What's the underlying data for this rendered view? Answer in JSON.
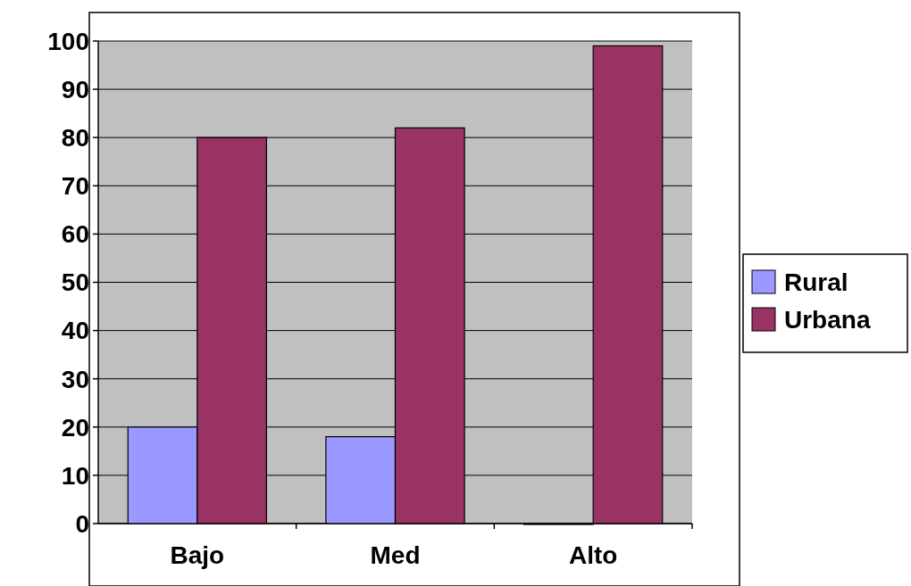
{
  "chart_data": {
    "type": "bar",
    "categories": [
      "Bajo",
      "Med",
      "Alto"
    ],
    "series": [
      {
        "name": "Rural",
        "color": "#9999ff",
        "values": [
          20,
          18,
          0
        ]
      },
      {
        "name": "Urbana",
        "color": "#993366",
        "values": [
          80,
          82,
          99
        ]
      }
    ],
    "ylim": [
      0,
      100
    ],
    "yticks": [
      0,
      10,
      20,
      30,
      40,
      50,
      60,
      70,
      80,
      90,
      100
    ],
    "grid": "y",
    "legend": "right"
  }
}
